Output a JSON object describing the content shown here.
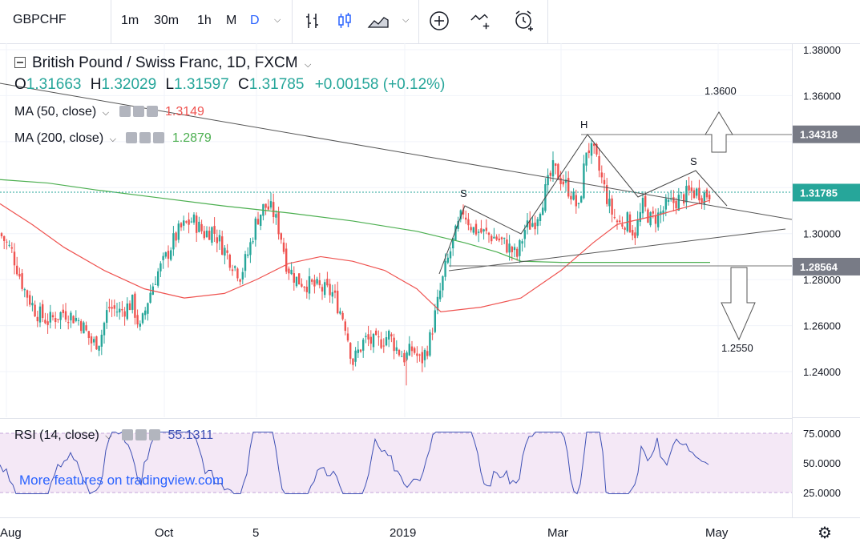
{
  "toolbar": {
    "symbol": "GBPCHF",
    "timeframes": [
      "1m",
      "30m",
      "1h",
      "M",
      "D"
    ],
    "active_timeframe": "D"
  },
  "legend": {
    "title": "British Pound / Swiss Franc, 1D, FXCM",
    "open_label": "O",
    "open": "1.31663",
    "high_label": "H",
    "high": "1.32029",
    "low_label": "L",
    "low": "1.31597",
    "close_label": "C",
    "close": "1.31785",
    "change": "+0.00158 (+0.12%)",
    "ma50_label": "MA (50, close)",
    "ma50_value": "1.3149",
    "ma200_label": "MA (200, close)",
    "ma200_value": "1.2879",
    "rsi_label": "RSI (14, close)",
    "rsi_value": "55.1311"
  },
  "annotations": {
    "target_up": "1.3600",
    "target_down": "1.2550",
    "head": "H",
    "shoulder_left": "S",
    "shoulder_right": "S"
  },
  "price_axis": {
    "ticks": [
      "1.38000",
      "1.36000",
      "1.34318",
      "1.30000",
      "1.28000",
      "1.26000",
      "1.24000"
    ],
    "badges": [
      "1.34318",
      "1.31785",
      "1.28564"
    ]
  },
  "rsi_axis": {
    "ticks": [
      "75.0000",
      "50.0000",
      "25.0000"
    ]
  },
  "time_axis": {
    "ticks": [
      "Aug",
      "Oct",
      "5",
      "2019",
      "Mar",
      "May"
    ]
  },
  "tradingview_link": "More features on tradingview.com",
  "colors": {
    "bull": "#26a69a",
    "bear": "#ef5350",
    "ma50": "#ef5350",
    "ma200": "#4caf50",
    "rsi": "#3f51b5",
    "accent": "#2962ff"
  }
}
